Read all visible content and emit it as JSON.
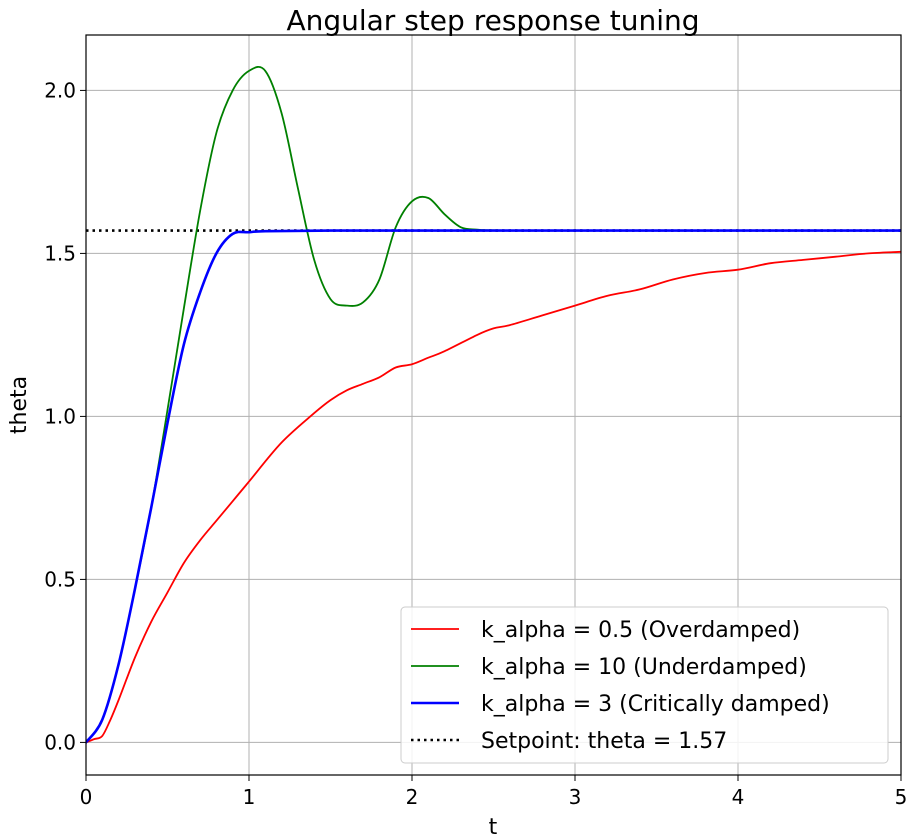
{
  "chart_data": {
    "type": "line",
    "title": "Angular step response tuning",
    "xlabel": "t",
    "ylabel": "theta",
    "xlim": [
      0,
      5
    ],
    "ylim": [
      -0.1,
      2.17
    ],
    "xticks": [
      0,
      1,
      2,
      3,
      4,
      5
    ],
    "xtick_labels": [
      "0",
      "1",
      "2",
      "3",
      "4",
      "5"
    ],
    "yticks": [
      0.0,
      0.5,
      1.0,
      1.5,
      2.0
    ],
    "ytick_labels": [
      "0.0",
      "0.5",
      "1.0",
      "1.5",
      "2.0"
    ],
    "grid": true,
    "legend_position": "bottom-right",
    "series": [
      {
        "name": "k_alpha = 0.5 (Overdamped)",
        "color": "#ff0000",
        "style": "solid",
        "x": [
          0,
          0.05,
          0.1,
          0.15,
          0.2,
          0.3,
          0.4,
          0.5,
          0.6,
          0.7,
          0.8,
          0.9,
          1.0,
          1.2,
          1.4,
          1.5,
          1.6,
          1.7,
          1.8,
          1.9,
          2.0,
          2.1,
          2.2,
          2.4,
          2.5,
          2.6,
          2.8,
          3.0,
          3.2,
          3.4,
          3.6,
          3.8,
          4.0,
          4.2,
          4.4,
          4.6,
          4.8,
          5.0
        ],
        "y": [
          0.0,
          0.01,
          0.02,
          0.07,
          0.13,
          0.26,
          0.37,
          0.46,
          0.55,
          0.62,
          0.68,
          0.74,
          0.8,
          0.92,
          1.01,
          1.05,
          1.08,
          1.1,
          1.12,
          1.15,
          1.16,
          1.18,
          1.2,
          1.25,
          1.27,
          1.28,
          1.31,
          1.34,
          1.37,
          1.39,
          1.42,
          1.44,
          1.45,
          1.47,
          1.48,
          1.49,
          1.5,
          1.505
        ]
      },
      {
        "name": "k_alpha = 10 (Underdamped)",
        "color": "#008000",
        "style": "solid",
        "x": [
          0,
          0.1,
          0.2,
          0.3,
          0.4,
          0.5,
          0.6,
          0.7,
          0.8,
          0.9,
          1.0,
          1.1,
          1.2,
          1.3,
          1.4,
          1.5,
          1.6,
          1.7,
          1.8,
          1.9,
          2.0,
          2.1,
          2.2,
          2.3,
          2.4,
          2.5,
          3.0,
          5.0
        ],
        "y": [
          0.0,
          0.07,
          0.24,
          0.47,
          0.72,
          1.02,
          1.33,
          1.63,
          1.87,
          2.0,
          2.06,
          2.06,
          1.93,
          1.7,
          1.48,
          1.36,
          1.34,
          1.35,
          1.42,
          1.58,
          1.66,
          1.67,
          1.62,
          1.58,
          1.573,
          1.571,
          1.57,
          1.57
        ]
      },
      {
        "name": "k_alpha = 3 (Critically damped)",
        "color": "#0000ff",
        "style": "solid",
        "x": [
          0,
          0.1,
          0.2,
          0.3,
          0.4,
          0.5,
          0.6,
          0.7,
          0.8,
          0.9,
          1.0,
          1.1,
          1.5,
          2.0,
          3.0,
          4.0,
          5.0
        ],
        "y": [
          0.0,
          0.07,
          0.24,
          0.47,
          0.72,
          0.98,
          1.22,
          1.38,
          1.5,
          1.56,
          1.565,
          1.568,
          1.57,
          1.57,
          1.57,
          1.57,
          1.57
        ]
      },
      {
        "name": "Setpoint: theta = 1.57",
        "color": "#000000",
        "style": "dotted",
        "x": [
          0,
          5
        ],
        "y": [
          1.57,
          1.57
        ]
      }
    ]
  }
}
